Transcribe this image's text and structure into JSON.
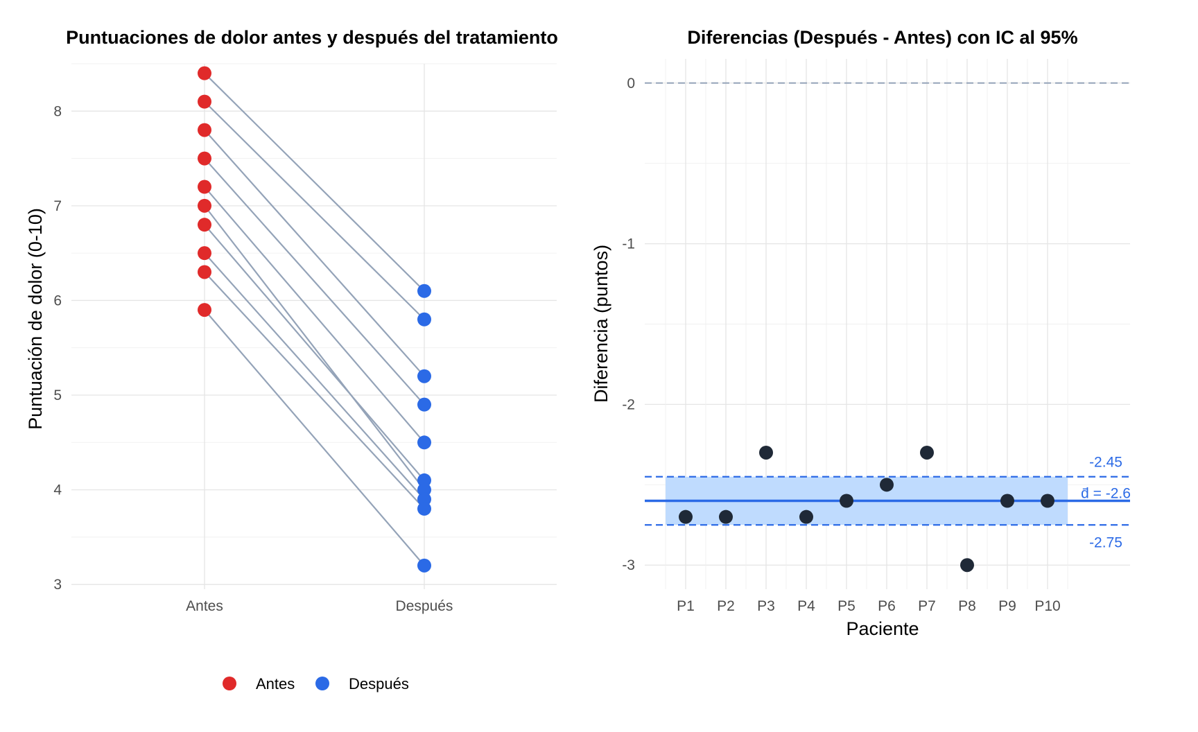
{
  "chart_data": [
    {
      "type": "line",
      "title": "Puntuaciones de dolor antes y después del tratamiento",
      "xlabel": "",
      "ylabel": "Puntuación de dolor (0-10)",
      "categories": [
        "Antes",
        "Después"
      ],
      "ylim": [
        2.95,
        8.5
      ],
      "yticks": [
        3,
        4,
        5,
        6,
        7,
        8
      ],
      "grid": true,
      "legend_position": "bottom",
      "series": [
        {
          "name": "Antes",
          "color": "#e02a2a"
        },
        {
          "name": "Después",
          "color": "#2b6ae6"
        }
      ],
      "line_color": "#94a3b8",
      "pairs": [
        {
          "antes": 8.4,
          "despues": 6.1
        },
        {
          "antes": 8.1,
          "despues": 5.8
        },
        {
          "antes": 7.8,
          "despues": 5.2
        },
        {
          "antes": 7.5,
          "despues": 4.9
        },
        {
          "antes": 7.2,
          "despues": 4.5
        },
        {
          "antes": 7.0,
          "despues": 4.0
        },
        {
          "antes": 6.8,
          "despues": 4.1
        },
        {
          "antes": 6.5,
          "despues": 3.9
        },
        {
          "antes": 6.3,
          "despues": 3.8
        },
        {
          "antes": 5.9,
          "despues": 3.2
        }
      ]
    },
    {
      "type": "scatter",
      "title": "Diferencias (Después - Antes) con IC al 95%",
      "xlabel": "Paciente",
      "ylabel": "Diferencia (puntos)",
      "categories": [
        "P1",
        "P2",
        "P3",
        "P4",
        "P5",
        "P6",
        "P7",
        "P8",
        "P9",
        "P10"
      ],
      "values": [
        -2.7,
        -2.7,
        -2.3,
        -2.7,
        -2.6,
        -2.5,
        -2.3,
        -3.0,
        -2.6,
        -2.6
      ],
      "ylim": [
        -3.15,
        0.15
      ],
      "yticks": [
        0,
        -1,
        -2,
        -3
      ],
      "grid": true,
      "point_color": "#1f2937",
      "zero_line_color": "#94a3b8",
      "mean": -2.6,
      "ci": [
        -2.75,
        -2.45
      ],
      "mean_color": "#2b6ae6",
      "ci_fill": "#bfdbfe",
      "annotations": {
        "upper": "-2.45",
        "mean": "d̄ = -2.6",
        "lower": "-2.75"
      }
    }
  ]
}
